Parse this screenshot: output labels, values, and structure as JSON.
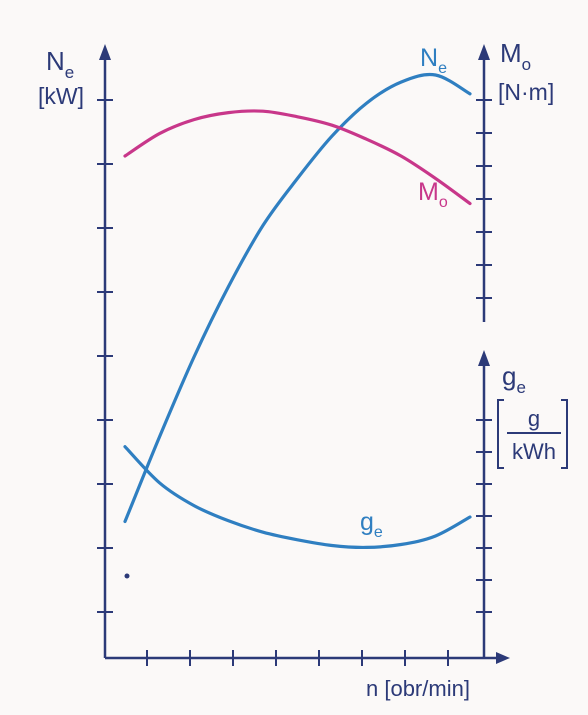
{
  "chart_data": {
    "type": "line",
    "title": "",
    "xlabel": "n [obr/min]",
    "left_axis": {
      "symbol": "N",
      "subscript": "e",
      "unit": "[kW]"
    },
    "right_axis_top": {
      "symbol": "M",
      "subscript": "o",
      "unit": "[N·m]"
    },
    "right_axis_bottom": {
      "symbol": "g",
      "subscript": "e",
      "unit_num": "g",
      "unit_den": "kWh"
    },
    "grid": false,
    "legend": "none",
    "axis_scale": "qualitative, no numeric tick labels",
    "x": [
      0,
      0.1,
      0.2,
      0.3,
      0.4,
      0.5,
      0.6,
      0.7,
      0.8,
      0.9,
      1.0
    ],
    "series": [
      {
        "name": "Ne",
        "label_symbol": "N",
        "label_sub": "e",
        "color": "#2f7fc1",
        "values": [
          0.05,
          0.23,
          0.4,
          0.55,
          0.68,
          0.78,
          0.87,
          0.94,
          0.985,
          1.0,
          0.96
        ]
      },
      {
        "name": "Mo",
        "label_symbol": "M",
        "label_sub": "o",
        "color": "#c8378a",
        "values": [
          0.8,
          0.88,
          0.93,
          0.955,
          0.96,
          0.94,
          0.91,
          0.86,
          0.8,
          0.72,
          0.63
        ]
      },
      {
        "name": "ge",
        "label_symbol": "g",
        "label_sub": "e",
        "color": "#2f7fc1",
        "values": [
          0.57,
          0.38,
          0.26,
          0.18,
          0.12,
          0.08,
          0.05,
          0.04,
          0.055,
          0.1,
          0.2
        ]
      }
    ]
  }
}
